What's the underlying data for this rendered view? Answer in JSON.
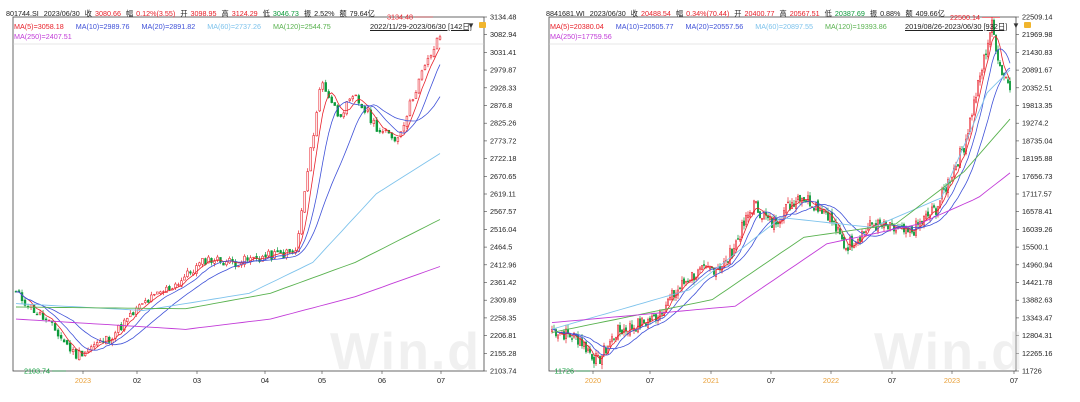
{
  "panels": [
    {
      "code": "801744.SI",
      "date": "2023/06/30",
      "close_label": "收",
      "close": "3080.66",
      "chg_label": "幅",
      "chg": "0.12%(3.55)",
      "open_label": "开",
      "open": "3098.95",
      "high_label": "高",
      "high": "3124.29",
      "low_label": "低",
      "low": "3046.73",
      "amp_label": "振",
      "amp": "2.52%",
      "amt_label": "额",
      "amt": "79.64亿",
      "ma5": "MA(5)=3058.18",
      "ma10": "MA(10)=2989.76",
      "ma20": "MA(20)=2891.82",
      "ma60": "MA(60)=2737.26",
      "ma120": "MA(120)=2544.75",
      "ma250": "MA(250)=2407.51",
      "range": "2022/11/29-2023/06/30 [142日]",
      "max_label": "3134.48",
      "min_label": "2103.74",
      "watermark": "Win.d"
    },
    {
      "code": "8841681.WI",
      "date": "2023/06/30",
      "close_label": "收",
      "close": "20488.54",
      "chg_label": "幅",
      "chg": "0.34%(70.44)",
      "open_label": "开",
      "open": "20400.77",
      "high_label": "高",
      "high": "20567.51",
      "low_label": "低",
      "low": "20387.69",
      "amp_label": "振",
      "amp": "0.88%",
      "amt_label": "额",
      "amt": "409.66亿",
      "ma5": "MA(5)=20380.04",
      "ma10": "MA(10)=20505.77",
      "ma20": "MA(20)=20557.56",
      "ma60": "MA(60)=20897.55",
      "ma120": "MA(120)=19393.86",
      "ma250": "MA(250)=17759.56",
      "range": "2019/08/26-2023/06/30 [932日]",
      "max_label": "22500.14",
      "min_label": "11726",
      "watermark": "Win.d"
    }
  ],
  "colors": {
    "up": "#e8202a",
    "down": "#0c9a3a",
    "ma5": "#e8202a",
    "ma10": "#3f51d8",
    "ma20": "#3f51d8",
    "ma60": "#7ec3ec",
    "ma120": "#59b24f",
    "ma250": "#c23bd8",
    "date_year": "#e9a13b"
  },
  "chart_data": [
    {
      "type": "candlestick",
      "title": "801744.SI",
      "ylim": [
        2103.74,
        3134.48
      ],
      "y_ticks": [
        3134.48,
        3082.94,
        3031.41,
        2979.87,
        2928.33,
        2876.8,
        2825.26,
        2773.72,
        2722.18,
        2670.65,
        2619.11,
        2567.57,
        2516.04,
        2464.5,
        2412.96,
        2361.42,
        2309.89,
        2258.35,
        2206.81,
        2155.28,
        2103.74
      ],
      "x_ticks": [
        "2023",
        "02",
        "03",
        "04",
        "05",
        "06",
        "07"
      ],
      "max": 3134.48,
      "min": 2103.74,
      "last_close": 3080.66,
      "ma_series": [
        "MA5",
        "MA10",
        "MA20",
        "MA60",
        "MA120",
        "MA250"
      ]
    },
    {
      "type": "candlestick",
      "title": "8841681.WI",
      "ylim": [
        11726,
        22509.14
      ],
      "y_ticks": [
        22509.14,
        21969.98,
        21430.83,
        20891.67,
        20352.51,
        19813.35,
        19274.2,
        18735.04,
        18195.88,
        17656.73,
        17117.57,
        16578.41,
        16039.26,
        15500.1,
        14960.94,
        14421.78,
        13882.63,
        13343.47,
        12804.31,
        12265.16,
        11726
      ],
      "x_ticks": [
        "2020",
        "07",
        "2021",
        "07",
        "2022",
        "07",
        "2023",
        "07"
      ],
      "max": 22500.14,
      "min": 11726,
      "last_close": 20488.54,
      "ma_series": [
        "MA5",
        "MA10",
        "MA20",
        "MA60",
        "MA120",
        "MA250"
      ]
    }
  ]
}
